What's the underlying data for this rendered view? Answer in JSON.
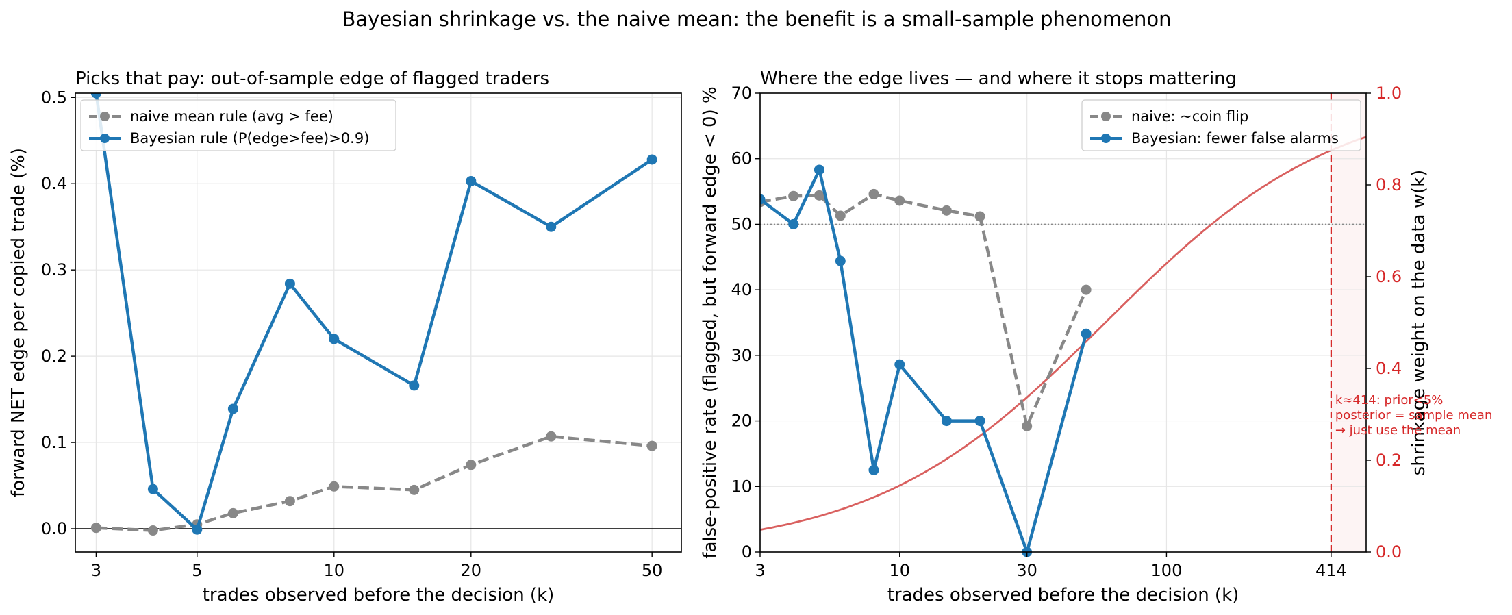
{
  "figure": {
    "suptitle": "Bayesian shrinkage vs. the naive mean: the benefit is a small-sample phenomenon"
  },
  "colors": {
    "naive": "#888888",
    "bayes": "#1f77b4",
    "weight": "#d9605f",
    "accent_red": "#d62728"
  },
  "chart_data": [
    {
      "type": "line",
      "title": "Picks that pay: out-of-sample edge of flagged traders",
      "xlabel": "trades observed before the decision (k)",
      "ylabel": "forward NET edge per copied trade (%)",
      "x_scale": "log",
      "xlim": [
        2.7,
        58
      ],
      "ylim": [
        -0.027,
        0.505
      ],
      "xticks": [
        3,
        5,
        10,
        20,
        50
      ],
      "xtick_labels": [
        "3",
        "5",
        "10",
        "20",
        "50"
      ],
      "yticks": [
        0.0,
        0.1,
        0.2,
        0.3,
        0.4,
        0.5
      ],
      "ytick_labels": [
        "0.0",
        "0.1",
        "0.2",
        "0.3",
        "0.4",
        "0.5"
      ],
      "grid": true,
      "hline": 0,
      "legend_position": "upper-left",
      "series": [
        {
          "name": "naive mean rule (avg > fee)",
          "style": "dashed",
          "x": [
            3,
            4,
            5,
            6,
            8,
            10,
            15,
            20,
            30,
            50
          ],
          "y": [
            0.001,
            -0.002,
            0.005,
            0.018,
            0.032,
            0.049,
            0.045,
            0.074,
            0.107,
            0.096
          ]
        },
        {
          "name": "Bayesian rule (P(edge>fee)>0.9)",
          "style": "solid",
          "x": [
            3,
            4,
            5,
            6,
            8,
            10,
            15,
            20,
            30,
            50
          ],
          "y": [
            0.505,
            0.046,
            -0.001,
            0.139,
            0.284,
            0.22,
            0.166,
            0.403,
            0.35,
            0.428
          ]
        }
      ]
    },
    {
      "type": "line",
      "title": "Where the edge lives — and where it stops mattering",
      "xlabel": "trades observed before the decision (k)",
      "ylabel": "false-positive rate  (flagged, but forward edge < 0)  %",
      "ylabel_right": "shrinkage weight on the data  w(k)",
      "x_scale": "log",
      "xlim": [
        3,
        560
      ],
      "ylim": [
        0,
        70
      ],
      "ylim_right": [
        0,
        1.0
      ],
      "xticks": [
        3,
        10,
        30,
        100,
        414
      ],
      "xtick_labels": [
        "3",
        "10",
        "30",
        "100",
        "414"
      ],
      "yticks": [
        0,
        10,
        20,
        30,
        40,
        50,
        60,
        70
      ],
      "ytick_labels": [
        "0",
        "10",
        "20",
        "30",
        "40",
        "50",
        "60",
        "70"
      ],
      "yticks_right": [
        0.0,
        0.2,
        0.4,
        0.6,
        0.8,
        1.0
      ],
      "ytick_labels_right": [
        "0.0",
        "0.2",
        "0.4",
        "0.6",
        "0.8",
        "1.0"
      ],
      "grid": true,
      "hline": 50,
      "vline": 414,
      "legend_position": "upper-right",
      "series": [
        {
          "name": "naive: ~coin flip",
          "style": "dashed",
          "x": [
            3,
            4,
            5,
            6,
            8,
            10,
            15,
            20,
            30,
            50
          ],
          "y": [
            53.4,
            54.3,
            54.4,
            51.3,
            54.6,
            53.6,
            52.1,
            51.2,
            19.2,
            40.0
          ]
        },
        {
          "name": "Bayesian: fewer false alarms",
          "style": "solid",
          "x": [
            3,
            4,
            5,
            6,
            8,
            10,
            15,
            20,
            30,
            50
          ],
          "y": [
            53.8,
            50.0,
            58.3,
            44.4,
            12.5,
            28.6,
            20.0,
            20.0,
            0.0,
            33.3
          ]
        },
        {
          "name": "",
          "axis": "right",
          "style": "solid-thin",
          "formula": "w(k) = k / (k + 59)",
          "x_range": [
            3,
            560
          ]
        }
      ],
      "annotation": {
        "lines": [
          "k≈414: prior<5%",
          "posterior = sample mean",
          "→ just use the mean"
        ]
      }
    }
  ]
}
